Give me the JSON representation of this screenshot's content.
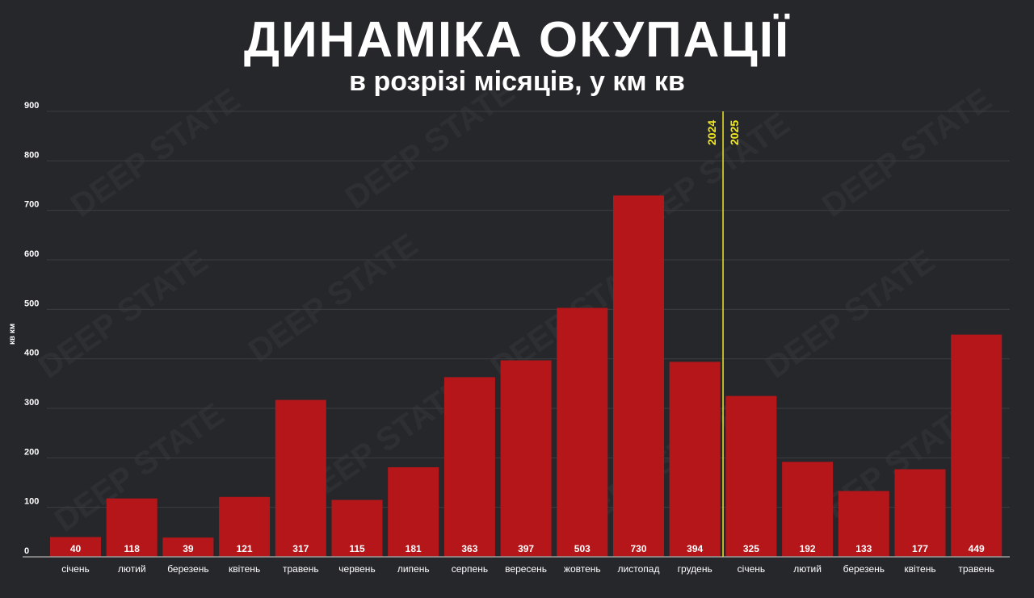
{
  "watermark": "DEEP STATE",
  "chart_data": {
    "type": "bar",
    "title": "ДИНАМІКА ОКУПАЦІЇ",
    "subtitle": "в розрізі місяців, у км кв",
    "ylabel": "кв км",
    "ylim": [
      0,
      900
    ],
    "yticks": [
      0,
      100,
      200,
      300,
      400,
      500,
      600,
      700,
      800,
      900
    ],
    "grid": true,
    "categories": [
      "січень",
      "лютий",
      "березень",
      "квітень",
      "травень",
      "червень",
      "липень",
      "серпень",
      "вересень",
      "жовтень",
      "листопад",
      "грудень",
      "січень",
      "лютий",
      "березень",
      "квітень",
      "травень"
    ],
    "values": [
      40,
      118,
      39,
      121,
      317,
      115,
      181,
      363,
      397,
      503,
      730,
      394,
      325,
      192,
      133,
      177,
      449
    ],
    "year_divider": {
      "before_label": "2024",
      "after_label": "2025",
      "after_index": 11
    },
    "colors": {
      "bar": "#b5161a",
      "divider": "#f2e81f",
      "background": "#26272b"
    }
  }
}
